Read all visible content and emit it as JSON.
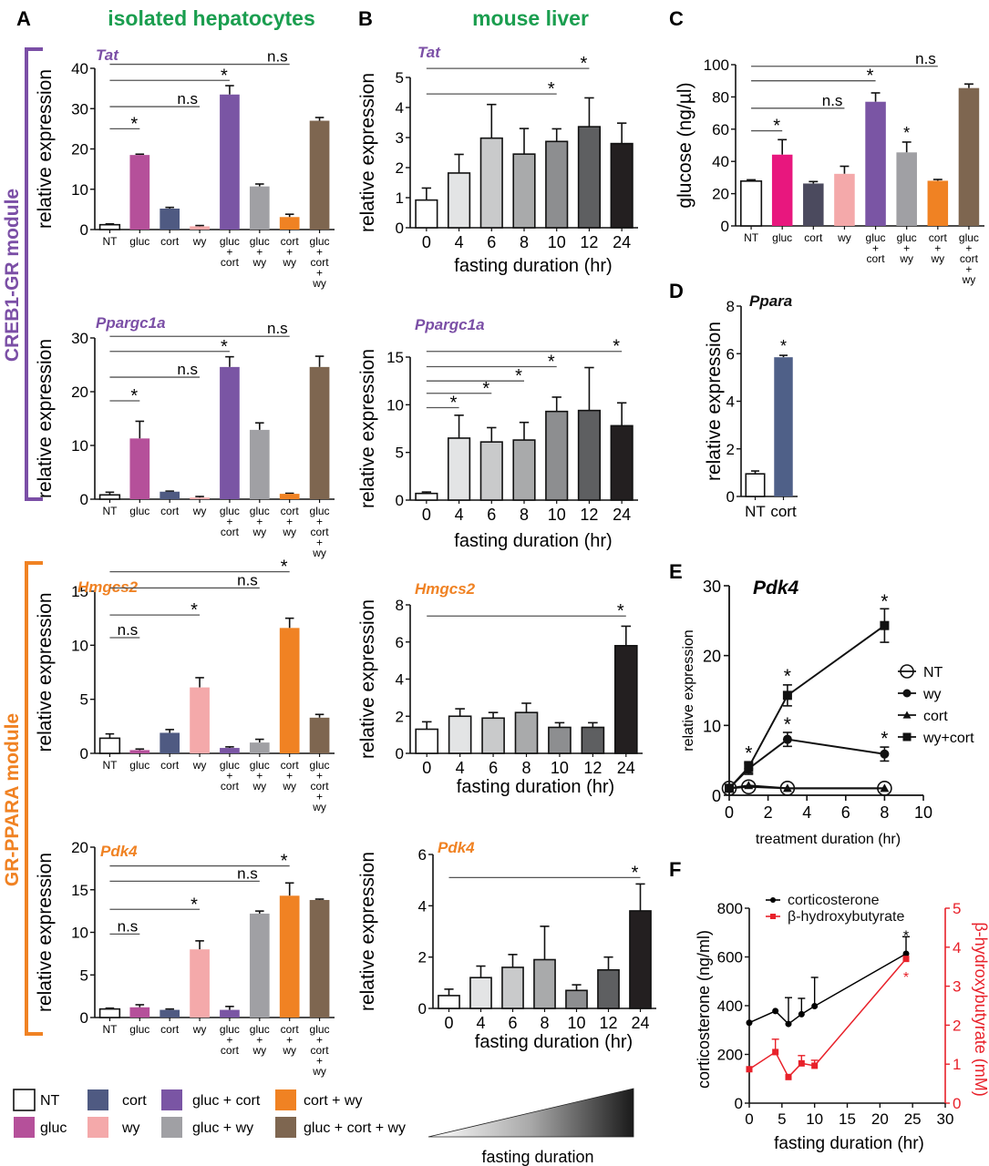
{
  "figure": {
    "panel_letters": [
      "A",
      "B",
      "C",
      "D",
      "E",
      "F"
    ],
    "column_titles": {
      "A": "isolated hepatocytes",
      "B": "mouse liver"
    },
    "modules": [
      {
        "label": "CREB1-GR module",
        "color": "#7b4fa6"
      },
      {
        "label": "GR-PPARA module",
        "color": "#f08223"
      }
    ],
    "colors": {
      "title_green": "#1a9e4f",
      "gene_purple": "#7b4fa6",
      "gene_orange": "#f08223",
      "axis": "#111111",
      "sigline": "#555555",
      "red": "#e8212a"
    },
    "treatment_colors": {
      "NT": "#ffffff",
      "gluc": "#b5509a",
      "cort": "#4f5a82",
      "wy": "#f4a9aa",
      "gluc+cort": "#7a55a4",
      "gluc+wy": "#a0a0a4",
      "cort+wy": "#f08223",
      "gluc+cort+wy": "#7e6650"
    },
    "fasting_colors": [
      "#ffffff",
      "#e3e4e5",
      "#c9cacb",
      "#a9aaab",
      "#8d8e90",
      "#5e5f61",
      "#231f20"
    ],
    "legend": {
      "items": [
        {
          "label": "NT",
          "key": "NT"
        },
        {
          "label": "cort",
          "key": "cort"
        },
        {
          "label": "gluc + cort",
          "key": "gluc+cort"
        },
        {
          "label": "cort + wy",
          "key": "cort+wy"
        },
        {
          "label": "gluc",
          "key": "gluc"
        },
        {
          "label": "wy",
          "key": "wy"
        },
        {
          "label": "gluc + wy",
          "key": "gluc+wy"
        },
        {
          "label": "gluc + cort + wy",
          "key": "gluc+cort+wy"
        }
      ],
      "gradient_label": "fasting duration"
    }
  },
  "chart_data": [
    {
      "id": "A-Tat",
      "panel": "A",
      "type": "bar",
      "title": "Tat",
      "title_color": "gene_purple",
      "ylabel": "relative expression",
      "ylim": [
        0,
        40
      ],
      "yticks": [
        0,
        10,
        20,
        30,
        40
      ],
      "categories": [
        [
          "NT"
        ],
        [
          "gluc"
        ],
        [
          "cort"
        ],
        [
          "wy"
        ],
        [
          "gluc",
          "+",
          "cort"
        ],
        [
          "gluc",
          "+",
          "wy"
        ],
        [
          "cort",
          "+",
          "wy"
        ],
        [
          "gluc",
          "+",
          "cort",
          "+",
          "wy"
        ]
      ],
      "keys": [
        "NT",
        "gluc",
        "cort",
        "wy",
        "gluc+cort",
        "gluc+wy",
        "cort+wy",
        "gluc+cort+wy"
      ],
      "values": [
        1.2,
        18.5,
        5.2,
        0.8,
        33.5,
        10.7,
        3.1,
        27.0
      ],
      "errors": [
        0.2,
        0.2,
        0.3,
        0.2,
        2.2,
        0.6,
        0.7,
        0.8
      ],
      "sig": [
        {
          "from": 0,
          "to": 1,
          "label": "*",
          "y": 25
        },
        {
          "from": 0,
          "to": 3,
          "label": "n.s",
          "y": 30.5
        },
        {
          "from": 0,
          "to": 4,
          "label": "*",
          "y": 37
        },
        {
          "from": 0,
          "to": 6,
          "label": "n.s",
          "y": 41
        }
      ]
    },
    {
      "id": "A-Ppargc1a",
      "panel": "A",
      "type": "bar",
      "title": "Ppargc1a",
      "title_color": "gene_purple",
      "ylabel": "relative expression",
      "ylim": [
        0,
        30
      ],
      "yticks": [
        0,
        10,
        20,
        30
      ],
      "categories": [
        [
          "NT"
        ],
        [
          "gluc"
        ],
        [
          "cort"
        ],
        [
          "wy"
        ],
        [
          "gluc",
          "+",
          "cort"
        ],
        [
          "gluc",
          "+",
          "wy"
        ],
        [
          "cort",
          "+",
          "wy"
        ],
        [
          "gluc",
          "+",
          "cort",
          "+",
          "wy"
        ]
      ],
      "keys": [
        "NT",
        "gluc",
        "cort",
        "wy",
        "gluc+cort",
        "gluc+wy",
        "cort+wy",
        "gluc+cort+wy"
      ],
      "values": [
        0.8,
        11.3,
        1.4,
        0.3,
        24.6,
        12.9,
        1.0,
        24.6
      ],
      "errors": [
        0.5,
        3.2,
        0.1,
        0.2,
        1.9,
        1.3,
        0.1,
        2.0
      ],
      "sig": [
        {
          "from": 0,
          "to": 1,
          "label": "*",
          "y": 18.3
        },
        {
          "from": 0,
          "to": 3,
          "label": "n.s",
          "y": 22.7
        },
        {
          "from": 0,
          "to": 4,
          "label": "*",
          "y": 27.5
        },
        {
          "from": 0,
          "to": 6,
          "label": "n.s",
          "y": 30.3
        }
      ]
    },
    {
      "id": "A-Hmgcs2",
      "panel": "A",
      "type": "bar",
      "title": "Hmgcs2",
      "title_color": "gene_orange",
      "ylabel": "relative expression",
      "ylim": [
        0,
        15
      ],
      "yticks": [
        0,
        5,
        10,
        15
      ],
      "categories": [
        [
          "NT"
        ],
        [
          "gluc"
        ],
        [
          "cort"
        ],
        [
          "wy"
        ],
        [
          "gluc",
          "+",
          "cort"
        ],
        [
          "gluc",
          "+",
          "wy"
        ],
        [
          "cort",
          "+",
          "wy"
        ],
        [
          "gluc",
          "+",
          "cort",
          "+",
          "wy"
        ]
      ],
      "keys": [
        "NT",
        "gluc",
        "cort",
        "wy",
        "gluc+cort",
        "gluc+wy",
        "cort+wy",
        "gluc+cort+wy"
      ],
      "values": [
        1.4,
        0.3,
        1.9,
        6.1,
        0.5,
        1.0,
        11.6,
        3.3
      ],
      "errors": [
        0.4,
        0.1,
        0.3,
        0.9,
        0.1,
        0.3,
        0.9,
        0.3
      ],
      "sig": [
        {
          "from": 0,
          "to": 1,
          "label": "n.s",
          "y": 10.7
        },
        {
          "from": 0,
          "to": 3,
          "label": "*",
          "y": 12.8
        },
        {
          "from": 0,
          "to": 5,
          "label": "n.s",
          "y": 15.3
        },
        {
          "from": 0,
          "to": 6,
          "label": "*",
          "y": 16.8
        }
      ]
    },
    {
      "id": "A-Pdk4",
      "panel": "A",
      "type": "bar",
      "title": "Pdk4",
      "title_color": "gene_orange",
      "ylabel": "relative expression",
      "ylim": [
        0,
        20
      ],
      "yticks": [
        0,
        5,
        10,
        15,
        20
      ],
      "categories": [
        [
          "NT"
        ],
        [
          "gluc"
        ],
        [
          "cort"
        ],
        [
          "wy"
        ],
        [
          "gluc",
          "+",
          "cort"
        ],
        [
          "gluc",
          "+",
          "wy"
        ],
        [
          "cort",
          "+",
          "wy"
        ],
        [
          "gluc",
          "+",
          "cort",
          "+",
          "wy"
        ]
      ],
      "keys": [
        "NT",
        "gluc",
        "cort",
        "wy",
        "gluc+cort",
        "gluc+wy",
        "cort+wy",
        "gluc+cort+wy"
      ],
      "values": [
        1.0,
        1.2,
        0.9,
        8.0,
        0.9,
        12.2,
        14.3,
        13.8
      ],
      "errors": [
        0.1,
        0.3,
        0.1,
        1.0,
        0.4,
        0.3,
        1.5,
        0.1
      ],
      "sig": [
        {
          "from": 0,
          "to": 1,
          "label": "n.s",
          "y": 9.8
        },
        {
          "from": 0,
          "to": 3,
          "label": "*",
          "y": 12.7
        },
        {
          "from": 0,
          "to": 5,
          "label": "n.s",
          "y": 16.0
        },
        {
          "from": 0,
          "to": 6,
          "label": "*",
          "y": 17.8
        }
      ]
    },
    {
      "id": "B-Tat",
      "panel": "B",
      "type": "bar",
      "title": "Tat",
      "title_color": "gene_purple",
      "ylabel": "relative expression",
      "xlabel": "fasting duration (hr)",
      "ylim": [
        0,
        5
      ],
      "yticks": [
        0,
        1,
        2,
        3,
        4,
        5
      ],
      "categories": [
        "0",
        "4",
        "6",
        "8",
        "10",
        "12",
        "24"
      ],
      "values": [
        0.92,
        1.82,
        2.98,
        2.45,
        2.87,
        3.36,
        2.8
      ],
      "errors": [
        0.4,
        0.62,
        1.12,
        0.85,
        0.42,
        0.96,
        0.68
      ],
      "sig": [
        {
          "from": 0,
          "to": 4,
          "label": "*",
          "y": 4.45
        },
        {
          "from": 0,
          "to": 5,
          "label": "*",
          "y": 5.3
        }
      ]
    },
    {
      "id": "B-Ppargc1a",
      "panel": "B",
      "type": "bar",
      "title": "Ppargc1a",
      "title_color": "gene_purple",
      "ylabel": "relative expression",
      "xlabel": "fasting duration (hr)",
      "ylim": [
        0,
        15
      ],
      "yticks": [
        0,
        5,
        10,
        15
      ],
      "categories": [
        "0",
        "4",
        "6",
        "8",
        "10",
        "12",
        "24"
      ],
      "values": [
        0.7,
        6.5,
        6.1,
        6.3,
        9.3,
        9.4,
        7.8
      ],
      "errors": [
        0.15,
        2.4,
        1.5,
        1.85,
        1.5,
        4.5,
        2.4
      ],
      "sig": [
        {
          "from": 0,
          "to": 1,
          "label": "*",
          "y": 9.7
        },
        {
          "from": 0,
          "to": 2,
          "label": "*",
          "y": 11.2
        },
        {
          "from": 0,
          "to": 3,
          "label": "*",
          "y": 12.5
        },
        {
          "from": 0,
          "to": 4,
          "label": "*",
          "y": 14.0
        },
        {
          "from": 0,
          "to": 6,
          "label": "*",
          "y": 15.6
        }
      ]
    },
    {
      "id": "B-Hmgcs2",
      "panel": "B",
      "type": "bar",
      "title": "Hmgcs2",
      "title_color": "gene_orange",
      "ylabel": "relative expression",
      "xlabel": "fasting duration (hr)",
      "ylim": [
        0,
        8
      ],
      "yticks": [
        0,
        2,
        4,
        6,
        8
      ],
      "categories": [
        "0",
        "4",
        "6",
        "8",
        "10",
        "12",
        "24"
      ],
      "values": [
        1.3,
        2.0,
        1.9,
        2.2,
        1.4,
        1.4,
        5.8
      ],
      "errors": [
        0.4,
        0.4,
        0.3,
        0.5,
        0.25,
        0.25,
        1.05
      ],
      "sig": [
        {
          "from": 0,
          "to": 6,
          "label": "*",
          "y": 7.4
        }
      ]
    },
    {
      "id": "B-Pdk4",
      "panel": "B",
      "type": "bar",
      "title": "Pdk4",
      "title_color": "gene_orange",
      "ylabel": "relative expression",
      "xlabel": "fasting duration (hr)",
      "ylim": [
        0,
        6
      ],
      "yticks": [
        0,
        2,
        4,
        6
      ],
      "categories": [
        "0",
        "4",
        "6",
        "8",
        "10",
        "12",
        "24"
      ],
      "values": [
        0.5,
        1.2,
        1.6,
        1.9,
        0.7,
        1.5,
        3.8
      ],
      "errors": [
        0.25,
        0.45,
        0.5,
        1.3,
        0.22,
        0.5,
        1.05
      ],
      "sig": [
        {
          "from": 0,
          "to": 6,
          "label": "*",
          "y": 5.1
        }
      ]
    },
    {
      "id": "C-glucose",
      "panel": "C",
      "type": "bar",
      "title": "",
      "ylabel": "glucose (ng/µl)",
      "ylim": [
        0,
        100
      ],
      "yticks": [
        0,
        20,
        40,
        60,
        80,
        100
      ],
      "categories": [
        [
          "NT"
        ],
        [
          "gluc"
        ],
        [
          "cort"
        ],
        [
          "wy"
        ],
        [
          "gluc",
          "+",
          "cort"
        ],
        [
          "gluc",
          "+",
          "wy"
        ],
        [
          "cort",
          "+",
          "wy"
        ],
        [
          "gluc",
          "+",
          "cort",
          "+",
          "wy"
        ]
      ],
      "keys": [
        "NT",
        "gluc",
        "cort",
        "wy",
        "gluc+cort",
        "gluc+wy",
        "cort+wy",
        "gluc+cort+wy"
      ],
      "bar_colors": [
        "#ffffff",
        "#e8177e",
        "#4b4a5e",
        "#f4a9aa",
        "#7a55a4",
        "#a0a0a4",
        "#f08223",
        "#7e6650"
      ],
      "values": [
        27.8,
        44.2,
        26.3,
        32.3,
        77.0,
        45.6,
        28.0,
        85.5
      ],
      "errors": [
        0.8,
        9.3,
        1.2,
        4.7,
        5.5,
        6.4,
        0.8,
        2.5
      ],
      "bar_annotations": [
        {
          "index": 5,
          "label": "*"
        }
      ],
      "sig": [
        {
          "from": 0,
          "to": 1,
          "label": "*",
          "y": 59
        },
        {
          "from": 0,
          "to": 3,
          "label": "n.s",
          "y": 73
        },
        {
          "from": 0,
          "to": 4,
          "label": "*",
          "y": 90
        },
        {
          "from": 0,
          "to": 6,
          "label": "n.s",
          "y": 99
        }
      ]
    },
    {
      "id": "D-Ppara",
      "panel": "D",
      "type": "bar",
      "title": "Ppara",
      "title_color": "black",
      "ylabel": "relative expression",
      "ylim": [
        0,
        8
      ],
      "yticks": [
        0,
        2,
        4,
        6,
        8
      ],
      "categories": [
        "NT",
        "cort"
      ],
      "bar_colors": [
        "#ffffff",
        "#4f6088"
      ],
      "values": [
        0.95,
        5.85
      ],
      "errors": [
        0.12,
        0.08
      ],
      "bar_annotations": [
        {
          "index": 1,
          "label": "*"
        }
      ]
    },
    {
      "id": "E-Pdk4",
      "panel": "E",
      "type": "line",
      "title": "Pdk4",
      "xlabel": "treatment duration (hr)",
      "ylabel": "relative expression",
      "xlim": [
        0,
        10
      ],
      "ylim": [
        0,
        30
      ],
      "xticks": [
        0,
        2,
        4,
        6,
        8,
        10
      ],
      "yticks": [
        0,
        10,
        20,
        30
      ],
      "legend_position": "right",
      "series": [
        {
          "name": "NT",
          "marker": "open-circle",
          "x": [
            0,
            1,
            3,
            8
          ],
          "y": [
            1.0,
            1.2,
            1.0,
            1.0
          ],
          "err": [
            0,
            0,
            0,
            0
          ]
        },
        {
          "name": "wy",
          "marker": "filled-circle",
          "x": [
            0,
            1,
            3,
            8
          ],
          "y": [
            1.0,
            3.8,
            8.0,
            5.9
          ],
          "err": [
            0,
            0.8,
            1.0,
            1.0
          ]
        },
        {
          "name": "cort",
          "marker": "triangle",
          "x": [
            0,
            1,
            3,
            8
          ],
          "y": [
            1.0,
            1.4,
            1.0,
            1.0
          ],
          "err": [
            0,
            0,
            0,
            0
          ]
        },
        {
          "name": "wy+cort",
          "marker": "square",
          "x": [
            0,
            1,
            3,
            8
          ],
          "y": [
            1.0,
            4.0,
            14.3,
            24.3
          ],
          "err": [
            0,
            0.8,
            1.5,
            2.4
          ]
        }
      ],
      "annotations": [
        {
          "x": 1,
          "y": 6.2,
          "label": "*"
        },
        {
          "x": 3,
          "y": 17.2,
          "label": "*"
        },
        {
          "x": 3,
          "y": 10.3,
          "label": "*"
        },
        {
          "x": 8,
          "y": 27.9,
          "label": "*"
        },
        {
          "x": 8,
          "y": 8.3,
          "label": "*"
        }
      ]
    },
    {
      "id": "F-serum",
      "panel": "F",
      "type": "line",
      "xlabel": "fasting duration (hr)",
      "ylabel": "corticosterone (ng/ml)",
      "y2label": "β-hydroxybutyrate (mM)",
      "xlim": [
        0,
        30
      ],
      "ylim": [
        0,
        800
      ],
      "y2lim": [
        0,
        5
      ],
      "xticks": [
        0,
        5,
        10,
        15,
        20,
        25,
        30
      ],
      "yticks": [
        0,
        200,
        400,
        600,
        800
      ],
      "y2ticks": [
        0,
        1,
        2,
        3,
        4,
        5
      ],
      "legend_position": "top",
      "series": [
        {
          "name": "corticosterone",
          "axis": "left",
          "color": "#000000",
          "marker": "filled-circle",
          "x": [
            0,
            4,
            6,
            8,
            10,
            24
          ],
          "y": [
            330,
            378,
            325,
            365,
            398,
            613
          ],
          "err": [
            0,
            0,
            108,
            65,
            118,
            70
          ]
        },
        {
          "name": "β-hydroxybutyrate",
          "axis": "right",
          "color": "#e8212a",
          "marker": "square",
          "x": [
            0,
            4,
            6,
            8,
            10,
            24
          ],
          "y": [
            0.87,
            1.31,
            0.67,
            1.02,
            0.96,
            3.7
          ],
          "err": [
            0,
            0.33,
            0,
            0.2,
            0.14,
            0
          ]
        }
      ],
      "annotations": [
        {
          "x": 24,
          "y": 690,
          "label": "*",
          "color": "#000000",
          "axis": "left"
        },
        {
          "x": 24,
          "y": 3.25,
          "label": "*",
          "color": "#e8212a",
          "axis": "right"
        }
      ]
    }
  ]
}
